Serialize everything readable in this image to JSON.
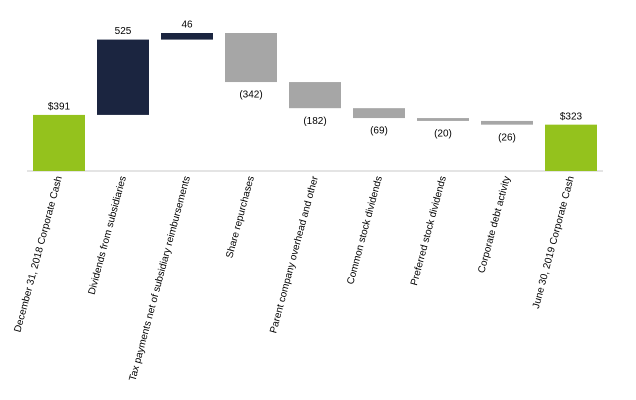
{
  "chart_data": {
    "type": "waterfall",
    "categories": [
      "December 31, 2018 Corporate Cash",
      "Dividends from subsidiaries",
      "Tax payments net of subsidiary reimbursements",
      "Share repurchases",
      "Parent company overhead and other",
      "Common stock dividends",
      "Preferred stock dividends",
      "Corporate debt activity",
      "June 30, 2019 Corporate Cash"
    ],
    "values": [
      391,
      525,
      46,
      -342,
      -182,
      -69,
      -20,
      -26,
      323
    ],
    "value_labels": [
      "$391",
      "525",
      "46",
      "(342)",
      "(182)",
      "(69)",
      "(20)",
      "(26)",
      "$323"
    ],
    "totals": [
      true,
      false,
      false,
      false,
      false,
      false,
      false,
      false,
      true
    ],
    "colors": {
      "total": "#94c21d",
      "increase": "#1b2540",
      "decrease": "#a6a6a6"
    }
  }
}
